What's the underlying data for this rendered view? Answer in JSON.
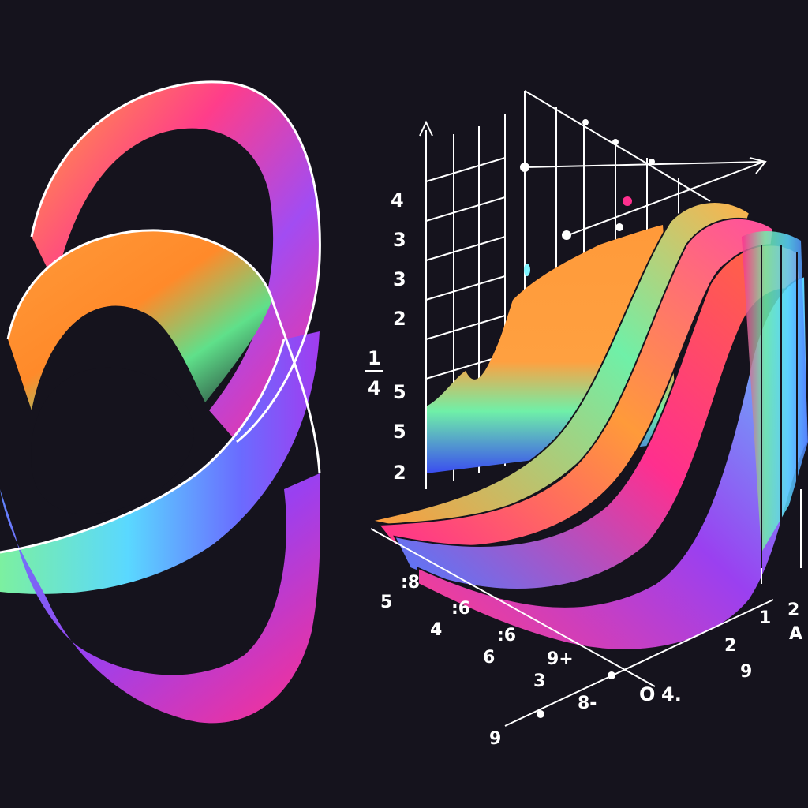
{
  "colors": {
    "background": "#15131d",
    "orange": "#ff9a3a",
    "magenta": "#ff2f8e",
    "purple": "#8a3cf0",
    "blue": "#4f7cff",
    "cyan": "#5ad8ff",
    "green": "#6ff0a8",
    "line": "#ffffff"
  },
  "left_figure": {
    "icon": "mobius-ribbon-icon"
  },
  "right_figure": {
    "icon": "3d-wave-surface-plot-icon"
  },
  "labels": {
    "y_axis": [
      "4",
      "3",
      "3",
      "2",
      "5",
      "5",
      "2"
    ],
    "y_fraction_top": "1",
    "y_fraction_bottom": "4",
    "x_axis": [
      ":8",
      "5",
      ":6",
      "4",
      ":6",
      "6",
      "9+",
      "3",
      "8-",
      "9",
      "O",
      "4."
    ],
    "z_axis": [
      "2",
      "1",
      "2",
      "9",
      "A"
    ]
  }
}
